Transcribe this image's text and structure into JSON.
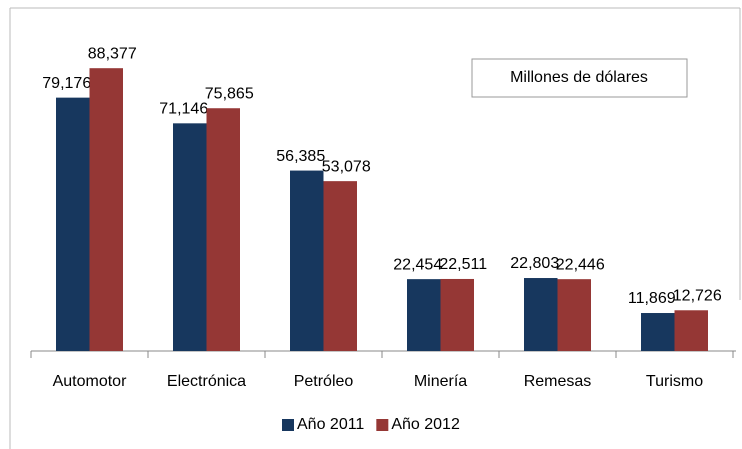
{
  "chart_data": {
    "type": "bar",
    "categories": [
      "Automotor",
      "Electrónica",
      "Petróleo",
      "Minería",
      "Remesas",
      "Turismo"
    ],
    "series": [
      {
        "name": "Año 2011",
        "color": "#17375e",
        "values": [
          79176,
          71146,
          56385,
          22454,
          22803,
          11869
        ],
        "value_labels": [
          "79,176",
          "71,146",
          "56,385",
          "22,454",
          "22,803",
          "11,869"
        ]
      },
      {
        "name": "Año 2012",
        "color": "#953735",
        "values": [
          88377,
          75865,
          53078,
          22511,
          22446,
          12726
        ],
        "value_labels": [
          "88,377",
          "75,865",
          "53,078",
          "22,511",
          "22,446",
          "12,726"
        ]
      }
    ],
    "annotation": "Millones de dólares",
    "ylim": [
      0,
      100000
    ],
    "legend": "bottom"
  }
}
